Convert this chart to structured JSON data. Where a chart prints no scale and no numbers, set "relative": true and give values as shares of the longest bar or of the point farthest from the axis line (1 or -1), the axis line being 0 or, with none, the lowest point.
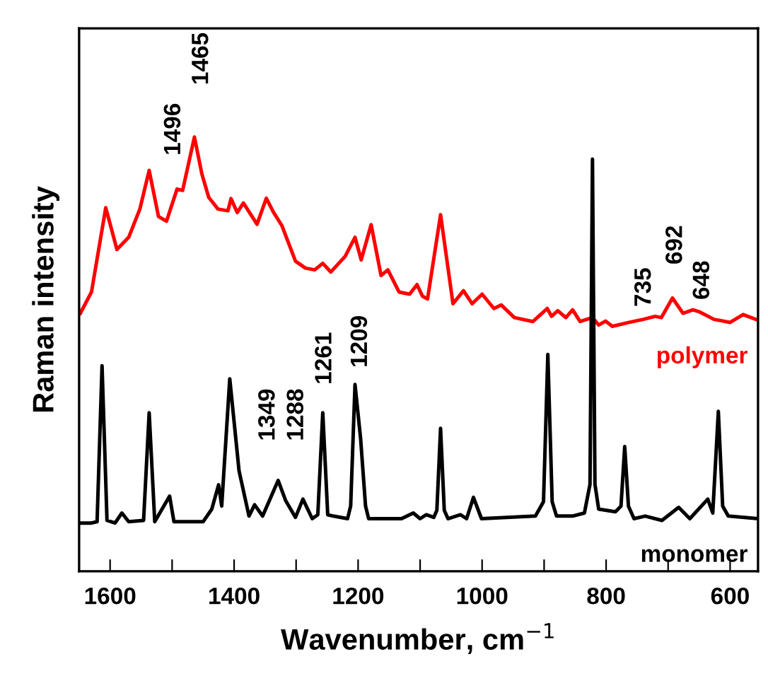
{
  "chart_data": {
    "type": "line",
    "relative": true,
    "xlabel": "Wavenumber, cm$^{−1}$",
    "ylabel": "Raman intensity",
    "xlim": [
      1650,
      555
    ],
    "xticks": [
      1600,
      {
        "value": 1500,
        "label": null
      },
      1400,
      {
        "value": 1300,
        "label": null
      },
      1200,
      {
        "value": 1100,
        "label": null
      },
      1000,
      {
        "value": 900,
        "label": null
      },
      800,
      {
        "value": 700,
        "label": null
      },
      600
    ],
    "tick_labels": "x",
    "grid": false,
    "legend": false,
    "marker": "none",
    "line_style": "solid",
    "series": [
      {
        "name": "polymer",
        "color": "#ff0000",
        "x": [
          1648,
          1630,
          1607,
          1589,
          1570,
          1552,
          1537,
          1522,
          1509,
          1492,
          1483,
          1464,
          1452,
          1441,
          1426,
          1410,
          1405,
          1395,
          1385,
          1363,
          1348,
          1337,
          1323,
          1301,
          1285,
          1270,
          1257,
          1244,
          1221,
          1205,
          1195,
          1179,
          1163,
          1152,
          1134,
          1117,
          1105,
          1096,
          1088,
          1067,
          1047,
          1030,
          1016,
          1000,
          981,
          969,
          948,
          918,
          895,
          888,
          878,
          865,
          854,
          842,
          822,
          812,
          801,
          790,
          763,
          740,
          721,
          711,
          693,
          676,
          660,
          649,
          626,
          600,
          579,
          555
        ],
        "values": [
          0.594,
          0.643,
          0.837,
          0.741,
          0.769,
          0.834,
          0.923,
          0.817,
          0.806,
          0.88,
          0.877,
          1.0,
          0.915,
          0.861,
          0.834,
          0.83,
          0.858,
          0.826,
          0.848,
          0.799,
          0.859,
          0.828,
          0.796,
          0.714,
          0.698,
          0.694,
          0.709,
          0.689,
          0.725,
          0.769,
          0.717,
          0.798,
          0.681,
          0.694,
          0.643,
          0.638,
          0.66,
          0.633,
          0.627,
          0.821,
          0.616,
          0.646,
          0.616,
          0.638,
          0.605,
          0.613,
          0.584,
          0.575,
          0.605,
          0.587,
          0.6,
          0.584,
          0.602,
          0.575,
          0.584,
          0.567,
          0.576,
          0.564,
          0.573,
          0.58,
          0.587,
          0.584,
          0.629,
          0.594,
          0.602,
          0.597,
          0.58,
          0.573,
          0.591,
          0.578
        ]
      },
      {
        "name": "monomer",
        "color": "#000000",
        "x": [
          1650,
          1630,
          1621,
          1613,
          1605,
          1592,
          1581,
          1570,
          1546,
          1537,
          1528,
          1504,
          1497,
          1450,
          1436,
          1425,
          1420,
          1407,
          1392,
          1376,
          1367,
          1354,
          1329,
          1317,
          1301,
          1289,
          1274,
          1265,
          1257,
          1249,
          1240,
          1217,
          1212,
          1205,
          1196,
          1188,
          1183,
          1130,
          1111,
          1100,
          1090,
          1078,
          1073,
          1067,
          1061,
          1055,
          1035,
          1025,
          1014,
          1001,
          914,
          901,
          894,
          887,
          880,
          854,
          835,
          826,
          822,
          818,
          812,
          785,
          776,
          770,
          764,
          755,
          737,
          710,
          683,
          665,
          636,
          628,
          619,
          612,
          603,
          577,
          555
        ],
        "values": [
          0.111,
          0.111,
          0.114,
          0.473,
          0.117,
          0.111,
          0.134,
          0.114,
          0.117,
          0.365,
          0.114,
          0.173,
          0.114,
          0.114,
          0.143,
          0.199,
          0.15,
          0.443,
          0.231,
          0.127,
          0.153,
          0.127,
          0.209,
          0.163,
          0.124,
          0.166,
          0.121,
          0.13,
          0.365,
          0.13,
          0.127,
          0.121,
          0.15,
          0.43,
          0.306,
          0.15,
          0.121,
          0.121,
          0.134,
          0.121,
          0.13,
          0.124,
          0.14,
          0.329,
          0.14,
          0.121,
          0.13,
          0.121,
          0.17,
          0.121,
          0.127,
          0.16,
          0.499,
          0.16,
          0.127,
          0.127,
          0.134,
          0.2,
          0.949,
          0.2,
          0.143,
          0.137,
          0.15,
          0.287,
          0.15,
          0.121,
          0.127,
          0.117,
          0.147,
          0.121,
          0.166,
          0.134,
          0.368,
          0.15,
          0.127,
          0.124,
          0.121
        ]
      }
    ],
    "annotations": [
      "1496",
      "1465",
      "1349",
      "1288",
      "1261",
      "1209",
      "735",
      "692",
      "648"
    ]
  }
}
